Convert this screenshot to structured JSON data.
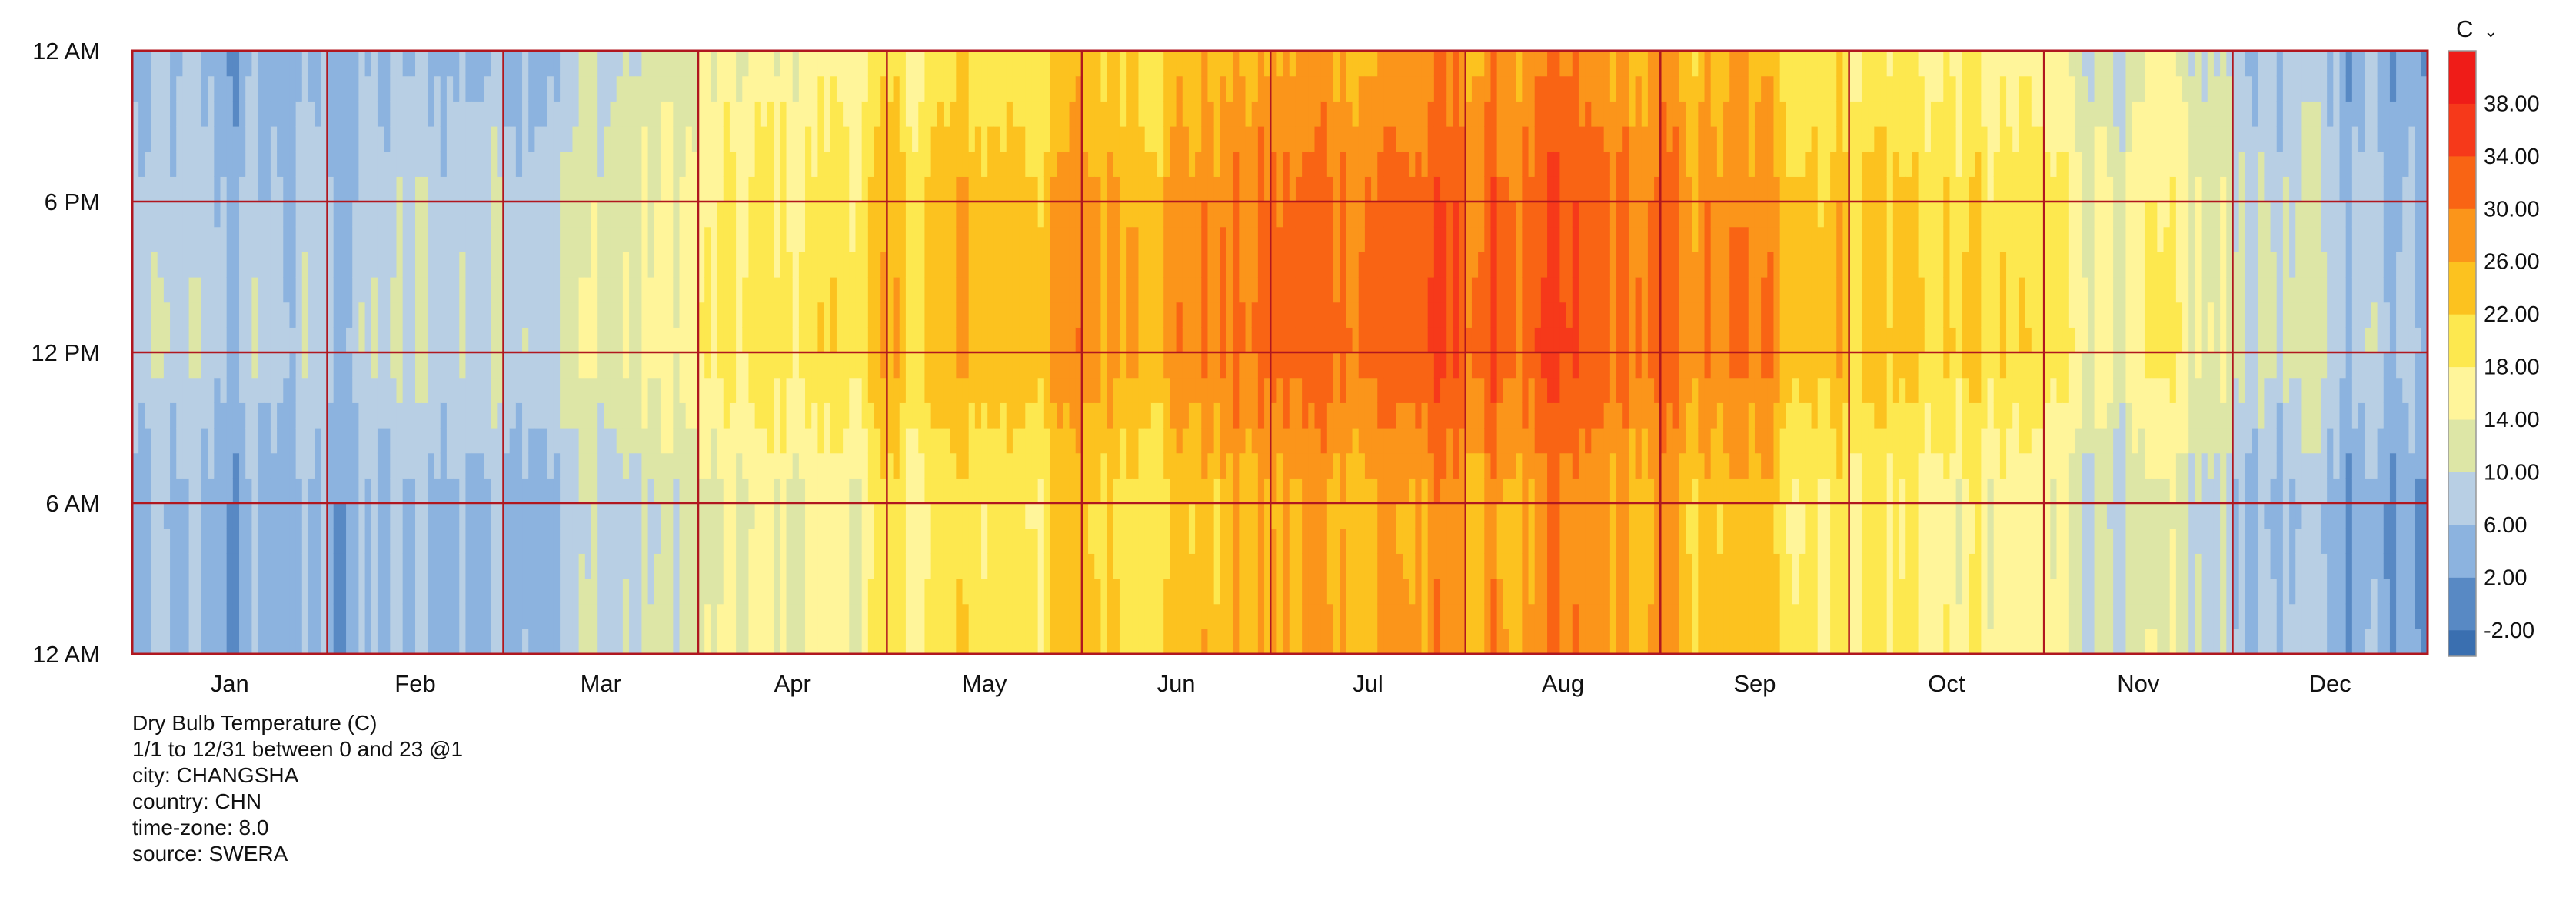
{
  "chart_data": {
    "type": "heatmap",
    "title": "Dry Bulb Temperature (C)",
    "x_axis": {
      "kind": "day-of-year",
      "range": [
        1,
        365
      ],
      "month_labels": [
        "Jan",
        "Feb",
        "Mar",
        "Apr",
        "May",
        "Jun",
        "Jul",
        "Aug",
        "Sep",
        "Oct",
        "Nov",
        "Dec"
      ],
      "month_lengths": [
        31,
        28,
        31,
        30,
        31,
        30,
        31,
        31,
        30,
        31,
        30,
        31
      ]
    },
    "y_axis": {
      "kind": "hour-of-day",
      "range": [
        0,
        24
      ],
      "tick_hours": [
        0,
        6,
        12,
        18,
        24
      ],
      "tick_labels": [
        "12 AM",
        "6 AM",
        "12 PM",
        "6 PM",
        "12 AM"
      ]
    },
    "colorbar": {
      "unit": "C",
      "tick_values": [
        -2,
        2,
        6,
        10,
        14,
        18,
        22,
        26,
        30,
        34,
        38
      ],
      "tick_labels": [
        "-2.00",
        "2.00",
        "6.00",
        "10.00",
        "14.00",
        "18.00",
        "22.00",
        "26.00",
        "30.00",
        "34.00",
        "38.00"
      ],
      "range": [
        -4,
        42
      ],
      "band_colors": [
        "#3a6fb0",
        "#5889c4",
        "#8cb3df",
        "#b8cfe4",
        "#dde6a6",
        "#fff59a",
        "#fde84f",
        "#fcc21f",
        "#fb951a",
        "#f96414",
        "#f6391a",
        "#ef1c18"
      ]
    },
    "grid": true,
    "grid_color": "#b0171f",
    "monthly_temperature_profile": {
      "description": "approximate monthly mean temperatures (C) read from color at given hours",
      "hours": [
        0,
        6,
        12,
        18
      ],
      "values": [
        [
          3,
          3,
          7,
          6
        ],
        [
          5,
          5,
          9,
          8
        ],
        [
          9,
          8,
          13,
          12
        ],
        [
          15,
          14,
          20,
          19
        ],
        [
          20,
          19,
          25,
          24
        ],
        [
          24,
          23,
          29,
          28
        ],
        [
          27,
          26,
          33,
          32
        ],
        [
          27,
          26,
          32,
          31
        ],
        [
          23,
          22,
          28,
          27
        ],
        [
          17,
          16,
          22,
          21
        ],
        [
          11,
          10,
          16,
          15
        ],
        [
          5,
          4,
          9,
          8
        ]
      ]
    }
  },
  "info": {
    "title": "Dry Bulb Temperature (C)",
    "range": "1/1 to 12/31 between 0 and 23 @1",
    "city": "city: CHANGSHA",
    "country": "country: CHN",
    "timezone": "time-zone: 8.0",
    "source": "source: SWERA"
  }
}
